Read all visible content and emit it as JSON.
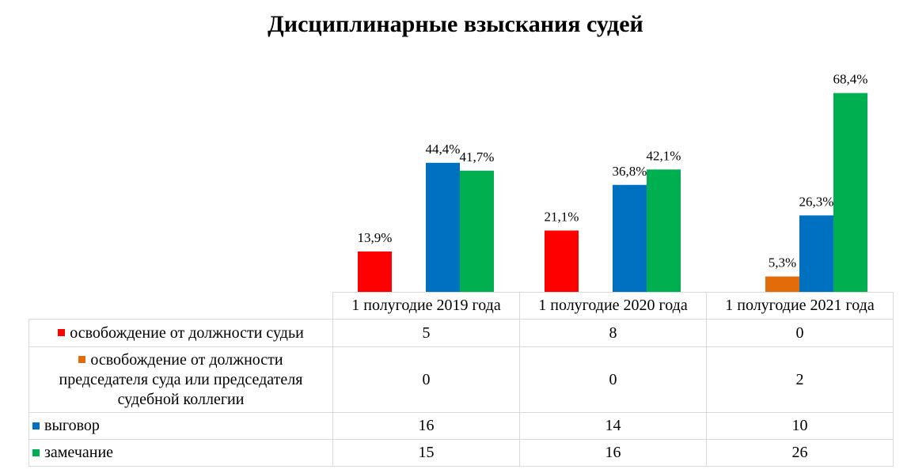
{
  "chart_data": {
    "type": "bar",
    "title": "Дисциплинарные взыскания судей",
    "categories": [
      "1 полугодие 2019 года",
      "1 полугодие 2020 года",
      "1 полугодие 2021 года"
    ],
    "series": [
      {
        "name": "освобождение от должности судьи",
        "color": "#ff0000",
        "values": [
          13.9,
          21.1,
          0
        ],
        "value_labels": [
          "13,9%",
          "21,1%",
          ""
        ],
        "table_values": [
          "5",
          "8",
          "0"
        ]
      },
      {
        "name": "освобождение от должности председателя суда или председателя судебной коллегии",
        "color": "#e36c0a",
        "values": [
          0,
          0,
          5.3
        ],
        "value_labels": [
          "",
          "",
          "5,3%"
        ],
        "table_values": [
          "0",
          "0",
          "2"
        ]
      },
      {
        "name": "выговор",
        "color": "#0070c0",
        "values": [
          44.4,
          36.8,
          26.3
        ],
        "value_labels": [
          "44,4%",
          "36,8%",
          "26,3%"
        ],
        "table_values": [
          "16",
          "14",
          "10"
        ]
      },
      {
        "name": "замечание",
        "color": "#00b050",
        "values": [
          41.7,
          42.1,
          68.4
        ],
        "value_labels": [
          "41,7%",
          "42,1%",
          "68,4%"
        ],
        "table_values": [
          "15",
          "16",
          "26"
        ]
      }
    ],
    "ylim": [
      0,
      70
    ],
    "grid": false,
    "legend": "data table"
  }
}
